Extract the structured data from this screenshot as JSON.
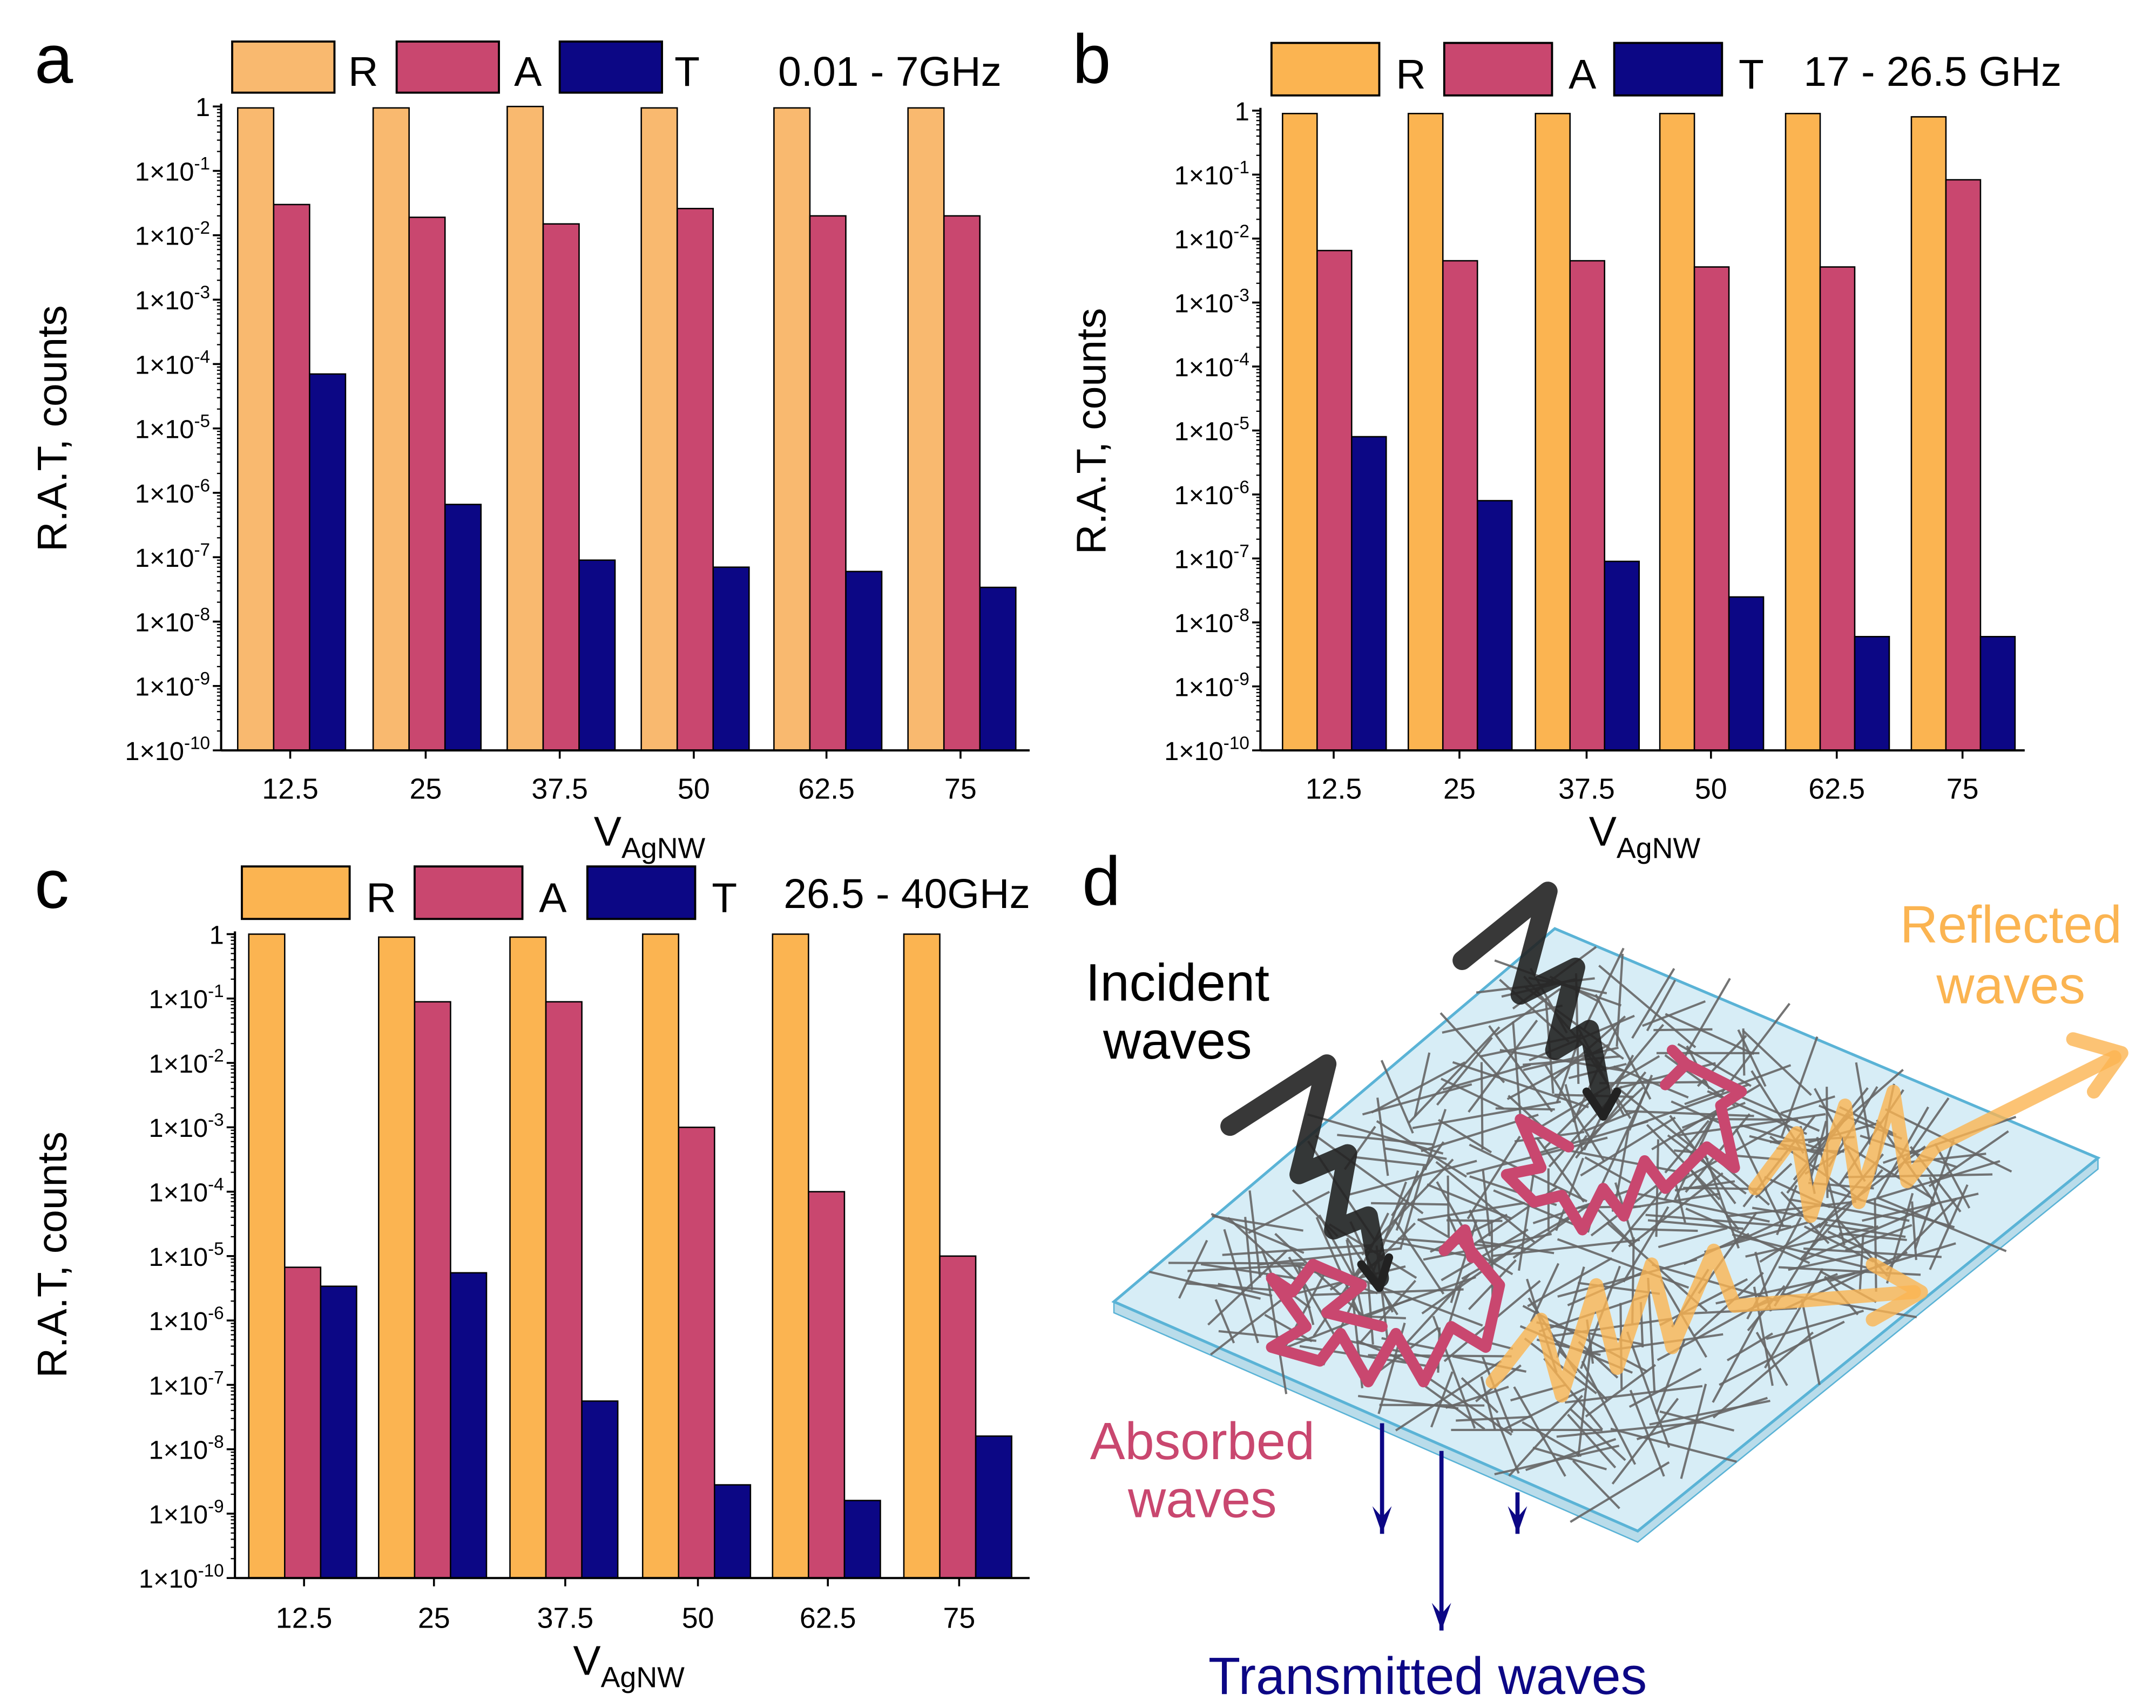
{
  "colors": {
    "R_a": "#f9b96f",
    "R": "#fbb451",
    "A": "#c9476f",
    "T": "#0c0785",
    "plate_fill": "#d7edf6",
    "plate_stroke": "#5ab3d6",
    "wires": "#666666",
    "incident": "#222222"
  },
  "chart_data": [
    {
      "panel": "a",
      "type": "bar",
      "title": "0.01 - 7GHz",
      "xlabel": "V",
      "xlabel_sub": "AgNW",
      "ylabel": "R.A.T, counts",
      "yscale": "log",
      "ylim": [
        1e-10,
        1
      ],
      "ytick_labels": [
        {
          "b": "1",
          "e": ""
        },
        {
          "b": "1×10",
          "e": "-1"
        },
        {
          "b": "1×10",
          "e": "-2"
        },
        {
          "b": "1×10",
          "e": "-3"
        },
        {
          "b": "1×10",
          "e": "-4"
        },
        {
          "b": "1×10",
          "e": "-5"
        },
        {
          "b": "1×10",
          "e": "-6"
        },
        {
          "b": "1×10",
          "e": "-7"
        },
        {
          "b": "1×10",
          "e": "-8"
        },
        {
          "b": "1×10",
          "e": "-9"
        },
        {
          "b": "1×10",
          "e": "-10"
        }
      ],
      "categories": [
        "12.5",
        "25",
        "37.5",
        "50",
        "62.5",
        "75"
      ],
      "legend": [
        "R",
        "A",
        "T"
      ],
      "series": [
        {
          "name": "R",
          "values": [
            0.95,
            0.95,
            1.0,
            0.95,
            0.95,
            0.95
          ]
        },
        {
          "name": "A",
          "values": [
            0.03,
            0.019,
            0.015,
            0.026,
            0.02,
            0.02
          ]
        },
        {
          "name": "T",
          "values": [
            7e-05,
            6.6e-07,
            9e-08,
            7e-08,
            6e-08,
            3.4e-08
          ]
        }
      ]
    },
    {
      "panel": "b",
      "type": "bar",
      "title": "17 - 26.5 GHz",
      "xlabel": "V",
      "xlabel_sub": "AgNW",
      "ylabel": "R.A.T, counts",
      "yscale": "log",
      "ylim": [
        1e-10,
        1
      ],
      "ytick_labels": [
        {
          "b": "1",
          "e": ""
        },
        {
          "b": "1×10",
          "e": "-1"
        },
        {
          "b": "1×10",
          "e": "-2"
        },
        {
          "b": "1×10",
          "e": "-3"
        },
        {
          "b": "1×10",
          "e": "-4"
        },
        {
          "b": "1×10",
          "e": "-5"
        },
        {
          "b": "1×10",
          "e": "-6"
        },
        {
          "b": "1×10",
          "e": "-7"
        },
        {
          "b": "1×10",
          "e": "-8"
        },
        {
          "b": "1×10",
          "e": "-9"
        },
        {
          "b": "1×10",
          "e": "-10"
        }
      ],
      "categories": [
        "12.5",
        "25",
        "37.5",
        "50",
        "62.5",
        "75"
      ],
      "legend": [
        "R",
        "A",
        "T"
      ],
      "series": [
        {
          "name": "R",
          "values": [
            0.9,
            0.9,
            0.9,
            0.9,
            0.9,
            0.8
          ]
        },
        {
          "name": "A",
          "values": [
            0.0065,
            0.0045,
            0.0045,
            0.0036,
            0.0036,
            0.083
          ]
        },
        {
          "name": "T",
          "values": [
            8e-06,
            8e-07,
            9e-08,
            2.5e-08,
            6e-09,
            6e-09
          ]
        }
      ]
    },
    {
      "panel": "c",
      "type": "bar",
      "title": "26.5 - 40GHz",
      "xlabel": "V",
      "xlabel_sub": "AgNW",
      "ylabel": "R.A.T, counts",
      "yscale": "log",
      "ylim": [
        1e-10,
        1
      ],
      "ytick_labels": [
        {
          "b": "1",
          "e": ""
        },
        {
          "b": "1×10",
          "e": "-1"
        },
        {
          "b": "1×10",
          "e": "-2"
        },
        {
          "b": "1×10",
          "e": "-3"
        },
        {
          "b": "1×10",
          "e": "-4"
        },
        {
          "b": "1×10",
          "e": "-5"
        },
        {
          "b": "1×10",
          "e": "-6"
        },
        {
          "b": "1×10",
          "e": "-7"
        },
        {
          "b": "1×10",
          "e": "-8"
        },
        {
          "b": "1×10",
          "e": "-9"
        },
        {
          "b": "1×10",
          "e": "-10"
        }
      ],
      "categories": [
        "12.5",
        "25",
        "37.5",
        "50",
        "62.5",
        "75"
      ],
      "legend": [
        "R",
        "A",
        "T"
      ],
      "series": [
        {
          "name": "R",
          "values": [
            1.0,
            0.9,
            0.9,
            1.0,
            1.0,
            1.0
          ]
        },
        {
          "name": "A",
          "values": [
            6.7e-06,
            0.089,
            0.089,
            0.001,
            0.0001,
            1e-05
          ]
        },
        {
          "name": "T",
          "values": [
            3.4e-06,
            5.5e-06,
            5.6e-08,
            2.8e-09,
            1.6e-09,
            1.6e-08
          ]
        }
      ]
    }
  ],
  "diagram": {
    "panel": "d",
    "incident": [
      "Incident",
      "waves"
    ],
    "reflected": [
      "Reflected",
      "waves"
    ],
    "absorbed": [
      "Absorbed",
      "waves"
    ],
    "transmitted": "Transmitted waves"
  }
}
